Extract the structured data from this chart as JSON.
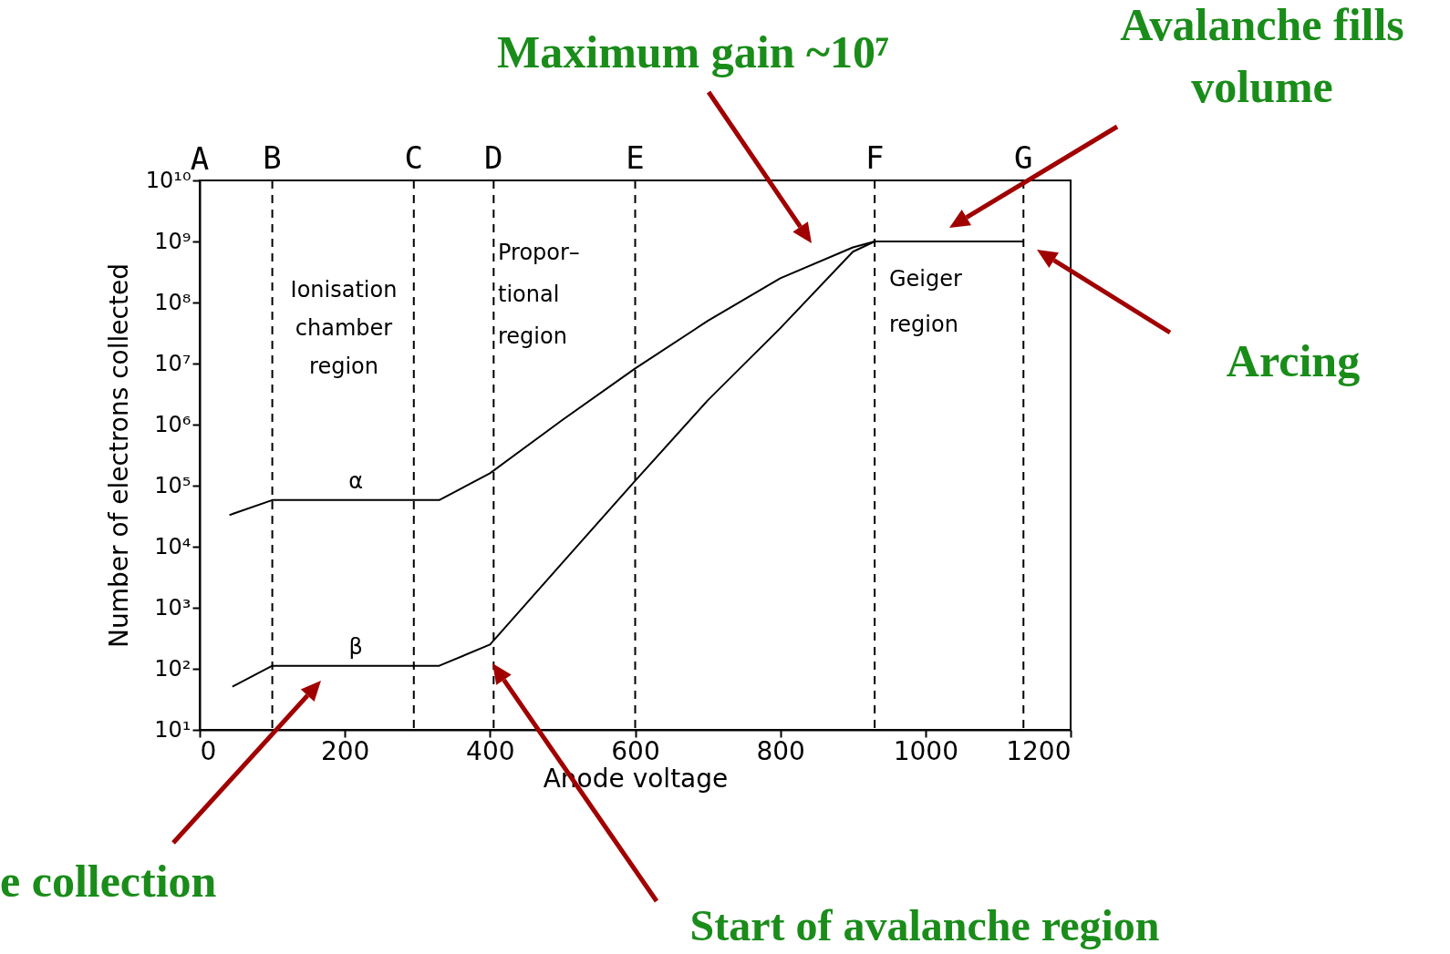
{
  "chart_data": {
    "type": "line",
    "xlabel": "Anode voltage",
    "ylabel": "Number of electrons collected",
    "xlim": [
      0,
      1200
    ],
    "xticks": [
      0,
      200,
      400,
      600,
      800,
      1000,
      1200
    ],
    "ylim": [
      10,
      10000000000
    ],
    "yticks": [
      {
        "value": 10,
        "label": "10¹"
      },
      {
        "value": 100,
        "label": "10²"
      },
      {
        "value": 1000,
        "label": "10³"
      },
      {
        "value": 10000,
        "label": "10⁴"
      },
      {
        "value": 100000,
        "label": "10⁵"
      },
      {
        "value": 1000000,
        "label": "10⁶"
      },
      {
        "value": 10000000,
        "label": "10⁷"
      },
      {
        "value": 100000000,
        "label": "10⁸"
      },
      {
        "value": 1000000000,
        "label": "10⁹"
      },
      {
        "value": 10000000000,
        "label": "10¹⁰"
      }
    ],
    "log": "y",
    "grid": false,
    "legend": false,
    "marker": "none",
    "line_style": "solid",
    "series": [
      {
        "name": "α",
        "color": "#000000",
        "x": [
          41,
          100,
          330,
          400,
          500,
          600,
          700,
          800,
          900,
          930,
          1135
        ],
        "values": [
          33000,
          58000,
          58000,
          160000,
          1200000,
          8300000,
          50000000,
          250000000,
          800000000,
          1000000000,
          1000000000
        ]
      },
      {
        "name": "β",
        "color": "#000000",
        "x": [
          45,
          100,
          330,
          400,
          500,
          600,
          700,
          800,
          900,
          930
        ],
        "values": [
          51,
          112,
          112,
          250,
          5500,
          120000,
          2500000,
          38000000,
          680000000,
          1000000000
        ]
      }
    ],
    "ref_lines": [
      {
        "axis": "x",
        "value": 100,
        "label": "B",
        "line_style": "dashed"
      },
      {
        "axis": "x",
        "value": 295,
        "label": "C",
        "line_style": "dashed"
      },
      {
        "axis": "x",
        "value": 405,
        "label": "D",
        "line_style": "dashed"
      },
      {
        "axis": "x",
        "value": 600,
        "label": "E",
        "line_style": "dashed"
      },
      {
        "axis": "x",
        "value": 930,
        "label": "F",
        "line_style": "dashed"
      },
      {
        "axis": "x",
        "value": 1135,
        "label": "G",
        "line_style": "dashed"
      }
    ],
    "annotations": [
      "Ionisation\nchamber\nregion",
      "Propor–\ntional\nregion",
      "Geiger\nregion",
      "Maximum gain ~10⁷",
      "Avalanche fills\nvolume",
      "Arcing",
      "e collection",
      "Start of avalanche region",
      "A"
    ]
  }
}
